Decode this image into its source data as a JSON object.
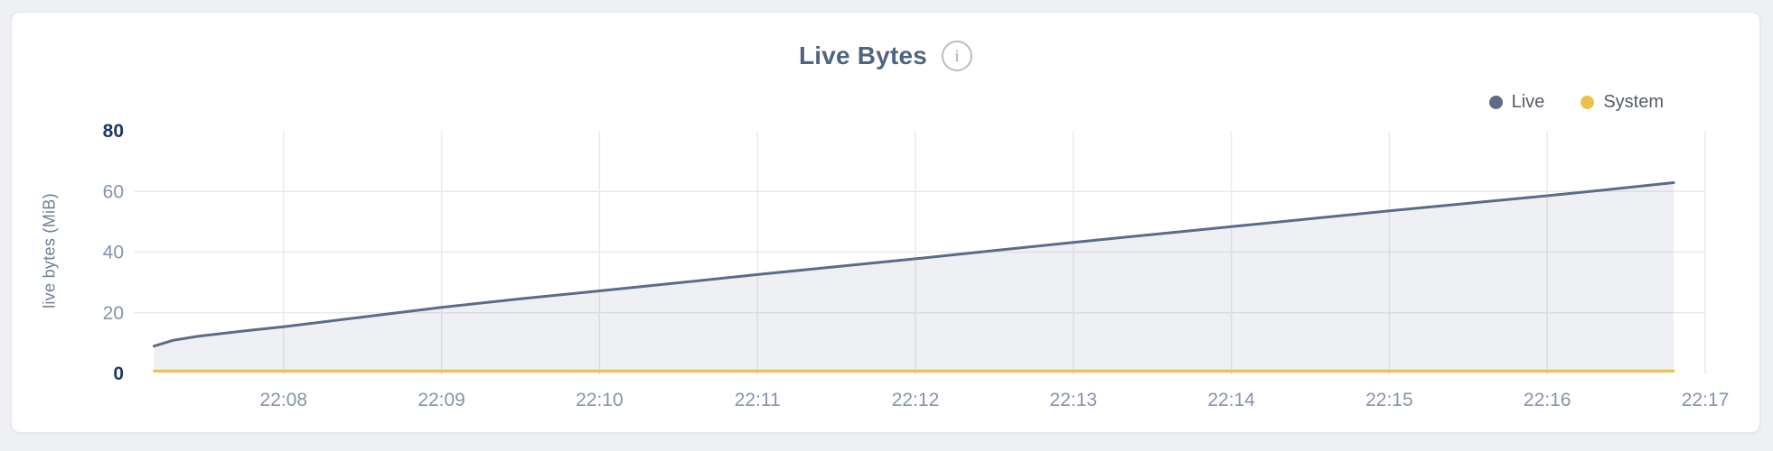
{
  "header": {
    "title": "Live Bytes",
    "info_icon_glyph": "i"
  },
  "legend": {
    "items": [
      {
        "label": "Live"
      },
      {
        "label": "System"
      }
    ]
  },
  "chart_data": {
    "type": "area",
    "title": "Live Bytes",
    "xlabel": "",
    "ylabel": "live bytes (MiB)",
    "ylim": [
      0,
      80
    ],
    "y_ticks": [
      0,
      20,
      40,
      60,
      80
    ],
    "x_ticks": [
      {
        "label": "22:08",
        "t": 1
      },
      {
        "label": "22:09",
        "t": 2
      },
      {
        "label": "22:10",
        "t": 3
      },
      {
        "label": "22:11",
        "t": 4
      },
      {
        "label": "22:12",
        "t": 5
      },
      {
        "label": "22:13",
        "t": 6
      },
      {
        "label": "22:14",
        "t": 7
      },
      {
        "label": "22:15",
        "t": 8
      },
      {
        "label": "22:16",
        "t": 9
      },
      {
        "label": "22:17",
        "t": 10
      }
    ],
    "grid": true,
    "legend_position": "top-right",
    "grid_color": "#e9eaee",
    "tick_color": "#8593ad",
    "tick_bold_color": "#1d3a64",
    "series": [
      {
        "name": "Live",
        "color": "#5d6b88",
        "fill": "rgba(93,107,136,0.10)",
        "points_unit": "minutes after 22:07, MiB",
        "points": [
          [
            0.18,
            9.0
          ],
          [
            0.3,
            10.9
          ],
          [
            0.45,
            12.2
          ],
          [
            0.75,
            14.0
          ],
          [
            1.0,
            15.4
          ],
          [
            1.5,
            18.6
          ],
          [
            2.0,
            21.8
          ],
          [
            2.5,
            24.6
          ],
          [
            3.0,
            27.2
          ],
          [
            3.5,
            29.9
          ],
          [
            4.0,
            32.6
          ],
          [
            4.5,
            35.2
          ],
          [
            5.0,
            37.8
          ],
          [
            5.5,
            40.5
          ],
          [
            6.0,
            43.2
          ],
          [
            6.5,
            45.8
          ],
          [
            7.0,
            48.4
          ],
          [
            7.5,
            51.0
          ],
          [
            8.0,
            53.6
          ],
          [
            8.5,
            56.1
          ],
          [
            9.0,
            58.6
          ],
          [
            9.4,
            60.7
          ],
          [
            9.8,
            62.9
          ]
        ]
      },
      {
        "name": "System",
        "color": "#ecc04a",
        "points_unit": "minutes after 22:07, MiB",
        "points": [
          [
            0.18,
            0.8
          ],
          [
            2.0,
            0.8
          ],
          [
            4.0,
            0.8
          ],
          [
            6.0,
            0.8
          ],
          [
            8.0,
            0.8
          ],
          [
            9.8,
            0.8
          ]
        ]
      }
    ]
  }
}
